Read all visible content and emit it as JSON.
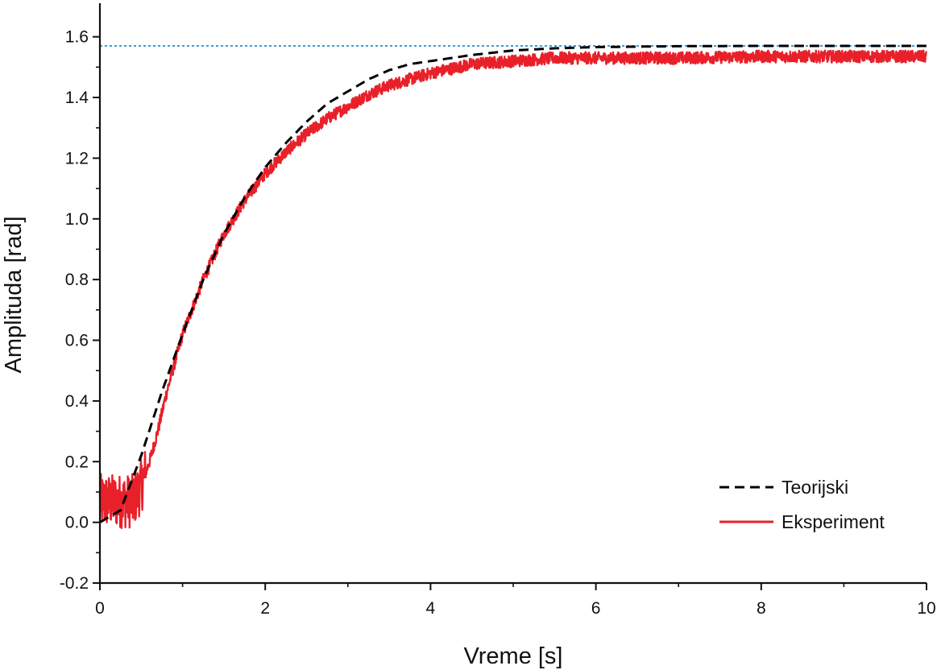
{
  "chart_data": {
    "type": "line",
    "xlabel": "Vreme [s]",
    "ylabel": "Amplituda [rad]",
    "xlim": [
      0,
      10
    ],
    "ylim": [
      -0.2,
      1.7
    ],
    "x_ticks": [
      0,
      2,
      4,
      6,
      8,
      10
    ],
    "x_tick_labels": [
      "0",
      "2",
      "4",
      "6",
      "8",
      "10"
    ],
    "y_ticks": [
      -0.2,
      0.0,
      0.2,
      0.4,
      0.6,
      0.8,
      1.0,
      1.2,
      1.4,
      1.6
    ],
    "y_tick_labels": [
      "-0.2",
      "0.0",
      "0.2",
      "0.4",
      "0.6",
      "0.8",
      "1.0",
      "1.2",
      "1.4",
      "1.6"
    ],
    "grid": false,
    "legend_position": "bottom-right",
    "reference_line": {
      "y": 1.57,
      "color": "#3a9ad9",
      "style": "dotted"
    },
    "series": [
      {
        "name": "Teorijski",
        "color": "#000000",
        "style": "dashed",
        "x": [
          0.0,
          0.25,
          0.5,
          0.75,
          1.0,
          1.25,
          1.5,
          1.75,
          2.0,
          2.25,
          2.5,
          2.75,
          3.0,
          3.25,
          3.5,
          3.75,
          4.0,
          4.5,
          5.0,
          5.5,
          6.0,
          7.0,
          8.0,
          9.0,
          10.0
        ],
        "y": [
          0.0,
          0.04,
          0.22,
          0.43,
          0.62,
          0.8,
          0.95,
          1.07,
          1.17,
          1.25,
          1.32,
          1.38,
          1.42,
          1.46,
          1.49,
          1.51,
          1.52,
          1.54,
          1.555,
          1.562,
          1.566,
          1.569,
          1.57,
          1.57,
          1.57
        ]
      },
      {
        "name": "Eksperiment",
        "color": "#e8202a",
        "style": "solid",
        "noise_amplitude": 0.02,
        "x": [
          0.0,
          0.1,
          0.2,
          0.3,
          0.4,
          0.5,
          0.6,
          0.7,
          0.8,
          1.0,
          1.25,
          1.5,
          1.75,
          2.0,
          2.25,
          2.5,
          2.75,
          3.0,
          3.25,
          3.5,
          4.0,
          4.5,
          5.0,
          5.5,
          6.0,
          7.0,
          8.0,
          9.0,
          10.0
        ],
        "y": [
          0.07,
          0.07,
          0.07,
          0.07,
          0.07,
          0.12,
          0.2,
          0.3,
          0.42,
          0.62,
          0.8,
          0.95,
          1.06,
          1.15,
          1.22,
          1.28,
          1.33,
          1.37,
          1.41,
          1.44,
          1.48,
          1.51,
          1.52,
          1.53,
          1.53,
          1.53,
          1.535,
          1.535,
          1.535
        ]
      }
    ]
  }
}
